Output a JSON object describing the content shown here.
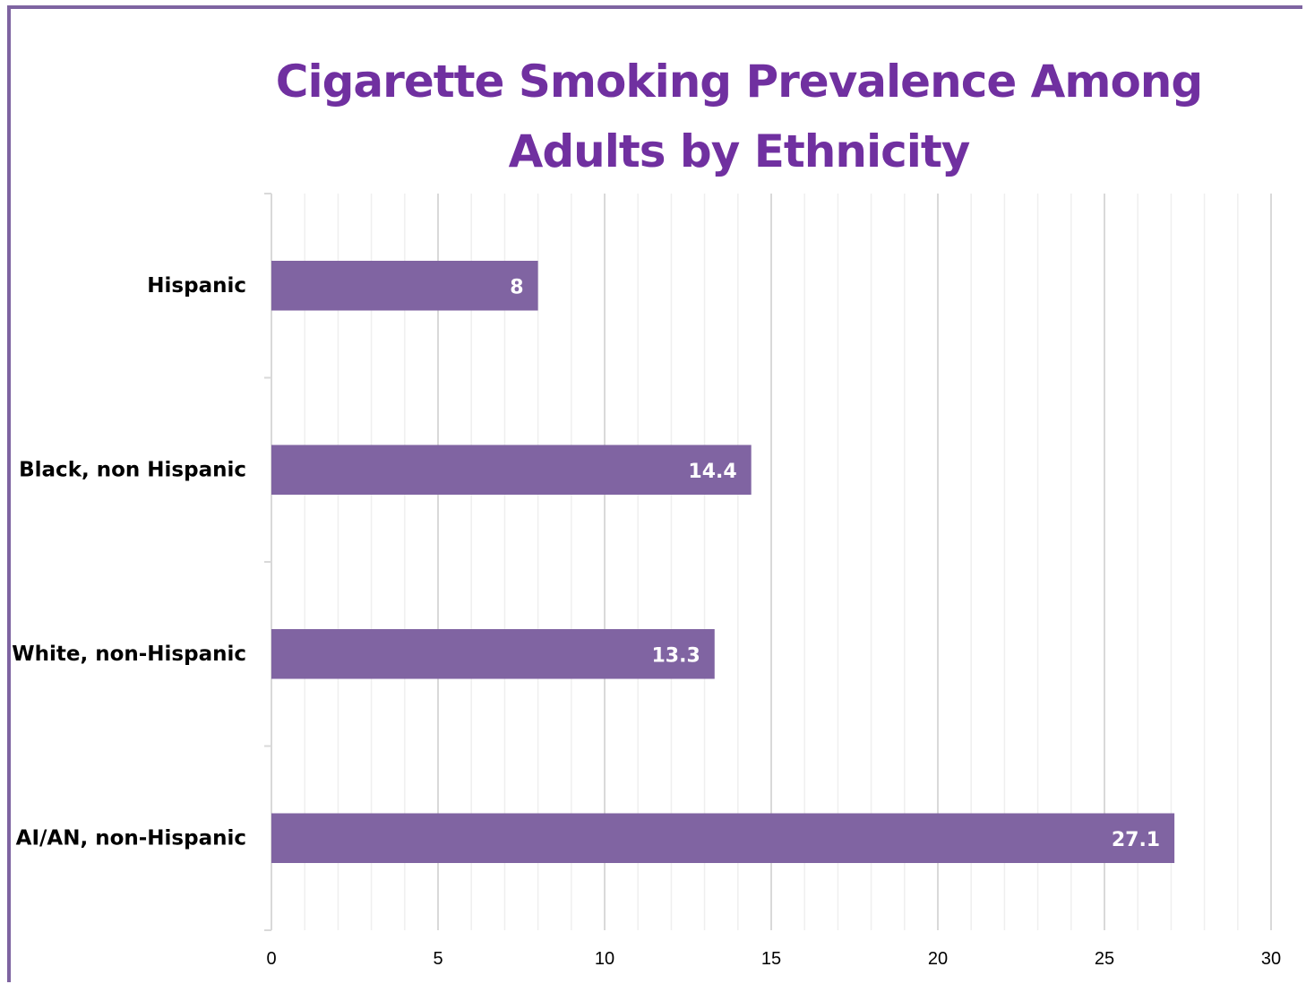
{
  "chart_data": {
    "type": "bar",
    "orientation": "horizontal",
    "title": "Cigarette Smoking Prevalence Among Adults by Ethnicity",
    "categories": [
      "Hispanic",
      "Black, non Hispanic",
      "White, non-Hispanic",
      "AI/AN, non-Hispanic"
    ],
    "values": [
      8,
      14.4,
      13.3,
      27.1
    ],
    "data_labels": [
      "8",
      "14.4",
      "13.3",
      "27.1"
    ],
    "xlim": [
      0,
      30
    ],
    "x_ticks": [
      0,
      5,
      10,
      15,
      20,
      25,
      30
    ],
    "x_tick_labels": [
      "0",
      "5",
      "10",
      "15",
      "20",
      "25",
      "30"
    ],
    "minor_tick_step": 1,
    "grid": true,
    "legend": "none",
    "colors": {
      "bar": "#8064a2",
      "title": "#7030a0",
      "major_grid": "#d9d9d9",
      "minor_grid": "#efefef",
      "frame": "#7e64a1"
    }
  }
}
